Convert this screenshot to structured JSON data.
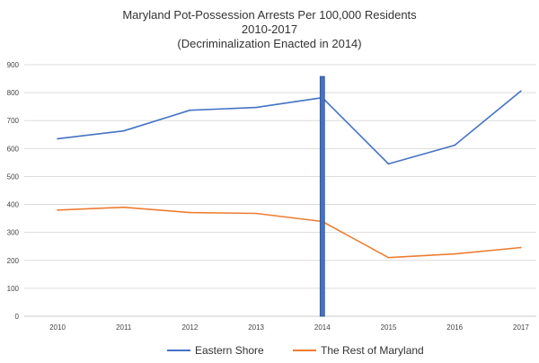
{
  "chart_data": {
    "type": "line",
    "title_lines": [
      "Maryland Pot-Possession Arrests Per 100,000 Residents",
      "2010-2017",
      "(Decriminalization Enacted in 2014)"
    ],
    "categories": [
      "2010",
      "2011",
      "2012",
      "2013",
      "2014",
      "2015",
      "2016",
      "2017"
    ],
    "y_ticks": [
      "0",
      "100",
      "200",
      "300",
      "400",
      "500",
      "600",
      "700",
      "800",
      "900"
    ],
    "ylim": [
      0,
      900
    ],
    "grid": true,
    "legend_position": "bottom",
    "series": [
      {
        "name": "Eastern Shore",
        "color": "#4472C4",
        "values": [
          635,
          663,
          737,
          747,
          782,
          545,
          612,
          806
        ]
      },
      {
        "name": "The Rest of Maryland",
        "color": "#ED7D31",
        "values": [
          380,
          390,
          371,
          368,
          339,
          210,
          223,
          246
        ]
      }
    ],
    "annotation": {
      "type": "vertical-bar",
      "category": "2014",
      "value": 858,
      "color": "#4472C4",
      "edge_color": "#2F528F"
    }
  }
}
